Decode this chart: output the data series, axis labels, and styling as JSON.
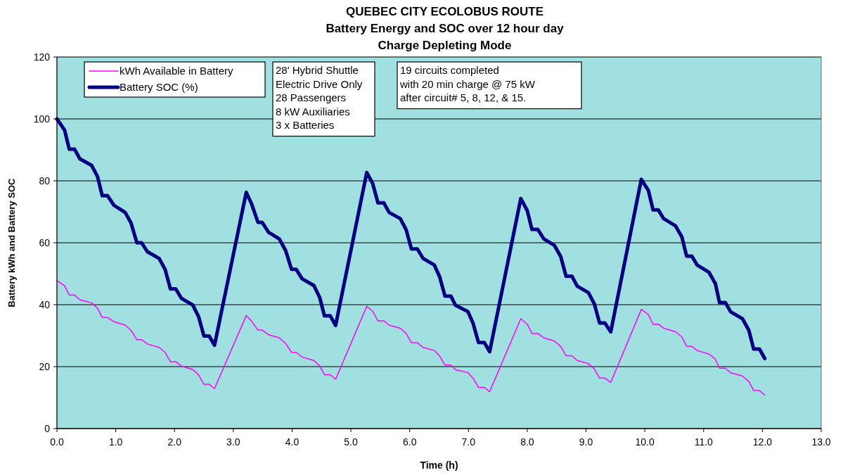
{
  "chart_data": {
    "type": "line",
    "title": "QUEBEC CITY ECOLOBUS ROUTE",
    "subtitle": "Battery Energy and SOC over 12 hour day\nCharge Depleting Mode",
    "xlabel": "Time (h)",
    "ylabel": "Battery kWh and Battery SOC",
    "x": [
      0.0,
      0.13,
      0.21,
      0.3,
      0.39,
      0.59,
      0.69,
      0.77,
      0.86,
      0.97,
      1.16,
      1.26,
      1.36,
      1.44,
      1.54,
      1.74,
      1.84,
      1.93,
      2.02,
      2.12,
      2.31,
      2.41,
      2.5,
      2.59,
      2.68,
      3.22,
      3.31,
      3.42,
      3.49,
      3.6,
      3.78,
      3.89,
      3.99,
      4.07,
      4.17,
      4.37,
      4.47,
      4.55,
      4.65,
      4.74,
      5.27,
      5.37,
      5.46,
      5.56,
      5.65,
      5.84,
      5.94,
      6.03,
      6.13,
      6.23,
      6.42,
      6.51,
      6.6,
      6.7,
      6.78,
      6.99,
      7.08,
      7.17,
      7.27,
      7.36,
      7.89,
      8.0,
      8.08,
      8.18,
      8.28,
      8.46,
      8.57,
      8.66,
      8.76,
      8.85,
      9.04,
      9.14,
      9.23,
      9.32,
      9.42,
      9.94,
      10.06,
      10.14,
      10.23,
      10.32,
      10.52,
      10.63,
      10.71,
      10.8,
      10.89,
      11.09,
      11.2,
      11.27,
      11.37,
      11.46,
      11.66,
      11.77,
      11.85,
      11.95,
      12.04
    ],
    "series": [
      {
        "name": "kWh Available in Battery",
        "color": "#ff00ff",
        "values": [
          47.8,
          46.1,
          43.1,
          43.1,
          41.6,
          40.6,
          38.9,
          35.9,
          35.9,
          34.5,
          33.4,
          31.7,
          28.7,
          28.7,
          27.3,
          26.2,
          24.6,
          21.6,
          21.6,
          20.1,
          19.1,
          17.3,
          14.3,
          14.3,
          12.9,
          36.5,
          34.7,
          31.8,
          31.8,
          30.3,
          29.3,
          27.5,
          24.6,
          24.6,
          23.1,
          22.0,
          20.2,
          17.4,
          17.4,
          15.9,
          39.5,
          37.9,
          34.8,
          34.8,
          33.4,
          32.4,
          30.7,
          27.7,
          27.7,
          26.2,
          25.2,
          23.4,
          20.5,
          20.5,
          19.0,
          18.1,
          16.2,
          13.3,
          13.3,
          11.9,
          35.5,
          33.7,
          30.7,
          30.7,
          29.3,
          28.3,
          26.5,
          23.5,
          23.5,
          22.0,
          21.0,
          19.3,
          16.3,
          16.3,
          14.9,
          38.5,
          36.8,
          33.7,
          33.7,
          32.4,
          31.3,
          29.6,
          26.6,
          26.6,
          25.2,
          24.1,
          22.4,
          19.5,
          19.5,
          18.0,
          17.0,
          15.2,
          12.3,
          12.3,
          10.8
        ]
      },
      {
        "name": "Battery SOC (%)",
        "color": "#000080",
        "values": [
          100,
          96.4,
          90.2,
          90.2,
          87.1,
          85.0,
          81.4,
          75.2,
          75.2,
          72.1,
          69.8,
          66.4,
          60.0,
          60.0,
          57.1,
          54.9,
          51.4,
          45.1,
          45.1,
          42.0,
          39.9,
          36.1,
          29.9,
          29.9,
          26.9,
          76.3,
          72.6,
          66.6,
          66.6,
          63.4,
          61.3,
          57.5,
          51.4,
          51.4,
          48.4,
          46.2,
          42.3,
          36.4,
          36.4,
          33.3,
          82.7,
          79.2,
          72.9,
          72.9,
          69.8,
          67.8,
          64.2,
          58.0,
          58.0,
          54.9,
          52.8,
          49.0,
          42.8,
          42.8,
          39.8,
          37.8,
          33.9,
          27.8,
          27.8,
          24.8,
          74.3,
          70.4,
          64.3,
          64.3,
          61.3,
          59.2,
          55.5,
          49.2,
          49.2,
          46.0,
          43.9,
          40.3,
          34.1,
          34.1,
          31.2,
          80.5,
          76.9,
          70.6,
          70.6,
          67.8,
          65.5,
          61.9,
          55.7,
          55.7,
          52.8,
          50.5,
          46.8,
          40.7,
          40.7,
          37.7,
          35.5,
          31.7,
          25.7,
          25.7,
          22.6
        ]
      }
    ],
    "xlim": [
      0,
      13
    ],
    "xticks": [
      {
        "value": 0,
        "label": "0.0"
      },
      {
        "value": 1,
        "label": "1.0"
      },
      {
        "value": 2,
        "label": "2.0"
      },
      {
        "value": 3,
        "label": "3.0"
      },
      {
        "value": 4,
        "label": "4.0"
      },
      {
        "value": 5,
        "label": "5.0"
      },
      {
        "value": 6,
        "label": "6.0"
      },
      {
        "value": 7,
        "label": "7.0"
      },
      {
        "value": 8,
        "label": "8.0"
      },
      {
        "value": 9,
        "label": "9.0"
      },
      {
        "value": 10,
        "label": "10.0"
      },
      {
        "value": 11,
        "label": "11.0"
      },
      {
        "value": 12,
        "label": "12.0"
      },
      {
        "value": 13,
        "label": "13.0"
      }
    ],
    "ylim": [
      0,
      120
    ],
    "yticks": [
      0,
      20,
      40,
      60,
      80,
      100,
      120
    ],
    "grid": "y",
    "legend": "top left",
    "marker": "none",
    "line_style": "solid",
    "annotations": [
      "28' Hybrid Shuttle\nElectric Drive Only\n28 Passengers\n8 kW Auxiliaries\n3 x Batteries",
      "19 circuits completed\nwith 20 min charge @ 75 kW\nafter circuit# 5, 8, 12, & 15."
    ]
  }
}
